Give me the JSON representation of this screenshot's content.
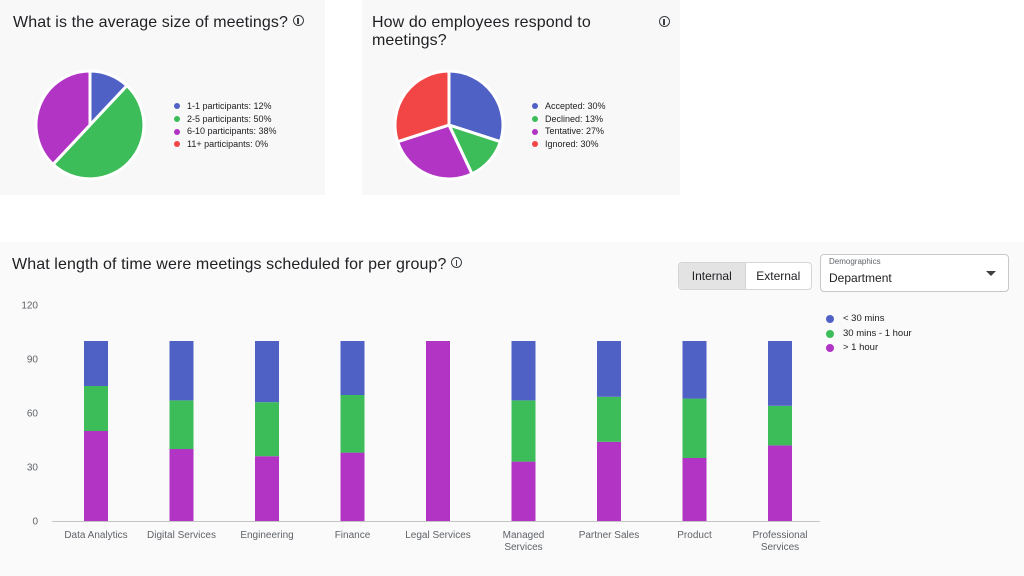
{
  "colors": {
    "blue": "#5061c6",
    "green": "#3dbd5a",
    "purple": "#b134c4",
    "red": "#f24646"
  },
  "cards": {
    "size": {
      "title": "What is the average size of meetings?",
      "info_icon": "info-icon"
    },
    "response": {
      "title": "How do employees respond to meetings?",
      "info_icon": "info-icon"
    },
    "length": {
      "title": "What length of time were meetings scheduled for per group?",
      "info_icon": "info-icon",
      "toggle": [
        "Internal",
        "External"
      ],
      "toggle_selected": "Internal",
      "select_label": "Demographics",
      "select_value": "Department"
    }
  },
  "chart_data": [
    {
      "type": "pie",
      "title": "What is the average size of meetings?",
      "labels": [
        "1-1 participants",
        "2-5 participants",
        "6-10 participants",
        "11+ participants"
      ],
      "legend_text": [
        "1-1 participants: 12%",
        "2-5 participants: 50%",
        "6-10 participants: 38%",
        "11+ participants: 0%"
      ],
      "values": [
        12,
        50,
        38,
        0
      ],
      "colors": [
        "#5061c6",
        "#3dbd5a",
        "#b134c4",
        "#f24646"
      ],
      "legend": "right"
    },
    {
      "type": "pie",
      "title": "How do employees respond to meetings?",
      "labels": [
        "Accepted",
        "Declined",
        "Tentative",
        "Ignored"
      ],
      "legend_text": [
        "Accepted: 30%",
        "Declined: 13%",
        "Tentative: 27%",
        "Ignored: 30%"
      ],
      "values": [
        30,
        13,
        27,
        30
      ],
      "colors": [
        "#5061c6",
        "#3dbd5a",
        "#b134c4",
        "#f24646"
      ],
      "legend": "right"
    },
    {
      "type": "bar",
      "stacked": true,
      "title": "What length of time were meetings scheduled for per group?",
      "categories": [
        [
          "Data Analytics"
        ],
        [
          "Digital Services"
        ],
        [
          "Engineering"
        ],
        [
          "Finance"
        ],
        [
          "Legal Services"
        ],
        [
          "Managed",
          "Services"
        ],
        [
          "Partner Sales"
        ],
        [
          "Product"
        ],
        [
          "Professional",
          "Services"
        ]
      ],
      "series": [
        {
          "name": "> 1 hour",
          "color": "#b134c4",
          "values": [
            50,
            40,
            36,
            38,
            100,
            33,
            44,
            35,
            42
          ]
        },
        {
          "name": "30 mins - 1 hour",
          "color": "#3dbd5a",
          "values": [
            25,
            27,
            30,
            32,
            0,
            34,
            25,
            33,
            22
          ]
        },
        {
          "name": "< 30 mins",
          "color": "#5061c6",
          "values": [
            25,
            33,
            34,
            30,
            0,
            33,
            31,
            32,
            36
          ]
        }
      ],
      "legend_order": [
        "< 30 mins",
        "30 mins - 1 hour",
        "> 1 hour"
      ],
      "yticks": [
        0,
        30,
        60,
        90,
        120
      ],
      "ylim": [
        0,
        120
      ],
      "grid": false,
      "legend": "right"
    }
  ]
}
